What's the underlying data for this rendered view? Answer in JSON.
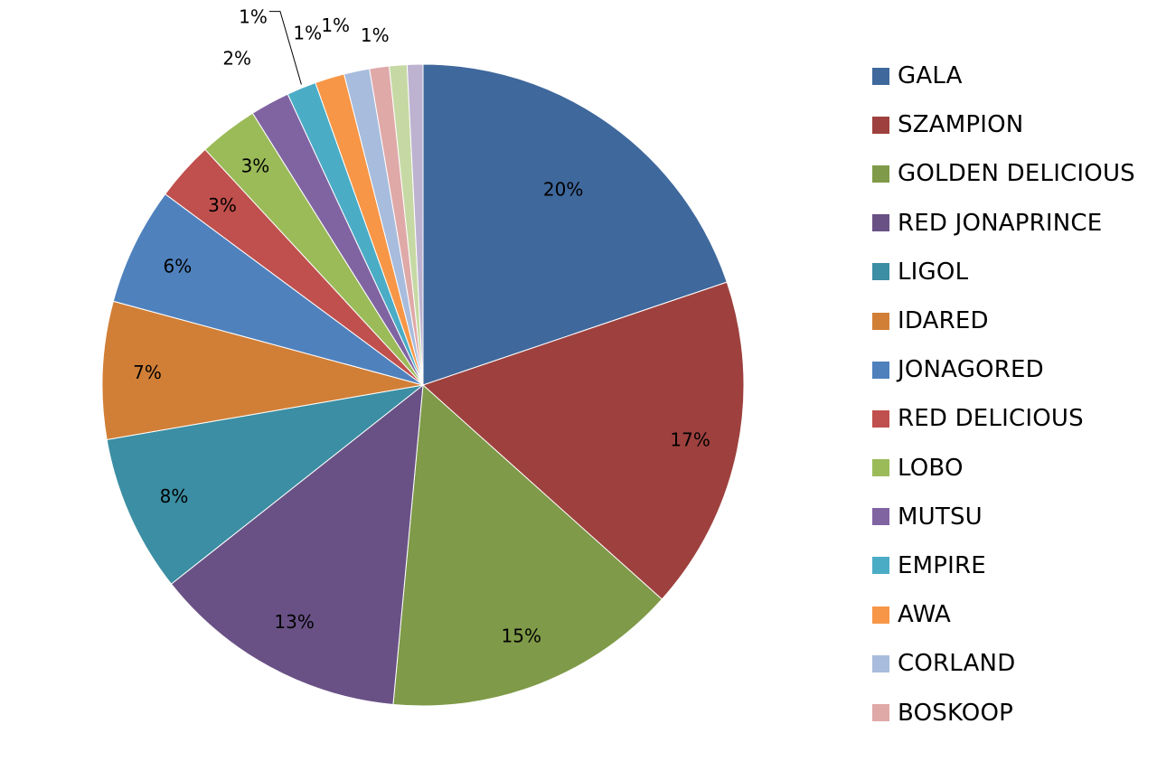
{
  "chart_data": {
    "type": "pie",
    "title": "",
    "start_angle": "12 o'clock",
    "direction": "clockwise",
    "slices": [
      {
        "name": "GALA",
        "value": 20,
        "label": "20%",
        "color": "#3F689C"
      },
      {
        "name": "SZAMPION",
        "value": 17,
        "label": "17%",
        "color": "#9E413E"
      },
      {
        "name": "GOLDEN DELICIOUS",
        "value": 15,
        "label": "15%",
        "color": "#7F9A48"
      },
      {
        "name": "RED JONAPRINCE",
        "value": 13,
        "label": "13%",
        "color": "#695185"
      },
      {
        "name": "LIGOL",
        "value": 8,
        "label": "8%",
        "color": "#3B8EA3"
      },
      {
        "name": "IDARED",
        "value": 7,
        "label": "7%",
        "color": "#D17F37"
      },
      {
        "name": "JONAGORED",
        "value": 6,
        "label": "6%",
        "color": "#4F81BD"
      },
      {
        "name": "RED DELICIOUS",
        "value": 3,
        "label": "3%",
        "color": "#C0504D"
      },
      {
        "name": "LOBO",
        "value": 3,
        "label": "3%",
        "color": "#9BBB59"
      },
      {
        "name": "MUTSU",
        "value": 2,
        "label": "2%",
        "color": "#8064A2"
      },
      {
        "name": "EMPIRE",
        "value": 1.5,
        "label": "1%",
        "color": "#4BACC6"
      },
      {
        "name": "AWA",
        "value": 1.5,
        "label": "1%",
        "color": "#F79646"
      },
      {
        "name": "CORLAND",
        "value": 1.3,
        "label": "1%",
        "color": "#A8BCDD"
      },
      {
        "name": "BOSKOOP",
        "value": 1.0,
        "label": "1%",
        "color": "#DFA9A8"
      },
      {
        "name": "",
        "value": 0.9,
        "label": "",
        "color": "#C6D9A4"
      },
      {
        "name": "",
        "value": 0.8,
        "label": "",
        "color": "#BDB2D0"
      }
    ],
    "legend": [
      "GALA",
      "SZAMPION",
      "GOLDEN DELICIOUS",
      "RED JONAPRINCE",
      "LIGOL",
      "IDARED",
      "JONAGORED",
      "RED DELICIOUS",
      "LOBO",
      "MUTSU",
      "EMPIRE",
      "AWA",
      "CORLAND",
      "BOSKOOP"
    ],
    "legend_position": "right"
  }
}
